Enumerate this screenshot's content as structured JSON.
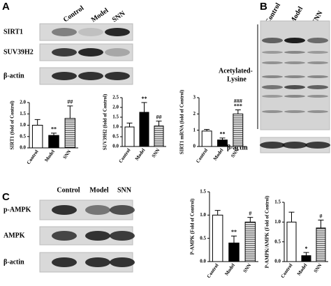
{
  "panels": {
    "a": "A",
    "b": "B",
    "c": "C"
  },
  "blot_a": {
    "lanes": [
      "Control",
      "Model",
      "SNN"
    ],
    "rows": [
      "SIRT1",
      "SUV39H2",
      "β-actin"
    ]
  },
  "blot_b": {
    "lanes": [
      "Control",
      "Model",
      "SNN"
    ],
    "label_lines": [
      "Acetylated-",
      "Lysine"
    ],
    "loading": "β-actin"
  },
  "blot_c": {
    "rows": [
      "p-AMPK",
      "AMPK",
      "β-actin"
    ]
  },
  "chart_data": [
    {
      "type": "bar",
      "ylabel": "SIRT1 (fold of Control)",
      "categories": [
        "Control",
        "Model",
        "SNN"
      ],
      "values": [
        1.0,
        0.55,
        1.3
      ],
      "errors": [
        0.25,
        0.1,
        0.55
      ],
      "annotations": [
        [],
        [
          "**"
        ],
        [
          "##"
        ]
      ],
      "colors": [
        "#ffffff",
        "#000000",
        "#ffffff"
      ],
      "hatch": [
        false,
        false,
        true
      ],
      "ylim": [
        0,
        2
      ],
      "yticks": [
        {
          "value": 0,
          "label": "0.0"
        },
        0.5,
        {
          "value": 1,
          "label": "1.0"
        },
        1.5,
        {
          "value": 2,
          "label": "2.0"
        }
      ]
    },
    {
      "type": "bar",
      "ylabel": "SUV39H2 (fold of Control)",
      "categories": [
        "Control",
        "Model",
        "SNN"
      ],
      "values": [
        1.0,
        1.75,
        1.05
      ],
      "errors": [
        0.2,
        0.5,
        0.25
      ],
      "annotations": [
        [],
        [
          "**"
        ],
        [
          "##"
        ]
      ],
      "colors": [
        "#ffffff",
        "#000000",
        "#ffffff"
      ],
      "hatch": [
        false,
        false,
        true
      ],
      "ylim": [
        0,
        2.5
      ],
      "yticks": [
        {
          "value": 0,
          "label": "0.0"
        },
        0.5,
        {
          "value": 1,
          "label": "1.0"
        },
        1.5,
        {
          "value": 2,
          "label": "2.0"
        },
        2.5
      ]
    },
    {
      "type": "bar",
      "ylabel": "SIRT1 mRNA (fold of Control)",
      "categories": [
        "Control",
        "Model",
        "SNN"
      ],
      "values": [
        0.95,
        0.4,
        2.0
      ],
      "errors": [
        0.1,
        0.12,
        0.25
      ],
      "annotations": [
        [],
        [
          "**"
        ],
        [
          "###",
          "***"
        ]
      ],
      "colors": [
        "#ffffff",
        "#000000",
        "#ffffff"
      ],
      "hatch": [
        false,
        false,
        true
      ],
      "ylim": [
        0,
        3
      ],
      "yticks": [
        0,
        1,
        2,
        3
      ]
    },
    {
      "type": "bar",
      "ylabel": "P-AMPK (Fold of Control)",
      "categories": [
        "Control",
        "Model",
        "SNN"
      ],
      "values": [
        1.0,
        0.4,
        0.85
      ],
      "errors": [
        0.1,
        0.15,
        0.1
      ],
      "annotations": [
        [],
        [
          "**"
        ],
        [
          "#"
        ]
      ],
      "colors": [
        "#ffffff",
        "#000000",
        "#ffffff"
      ],
      "hatch": [
        false,
        false,
        true
      ],
      "ylim": [
        0,
        1.5
      ],
      "yticks": [
        {
          "value": 0,
          "label": "0.0"
        },
        0.5,
        {
          "value": 1,
          "label": "1.0"
        },
        1.5
      ]
    },
    {
      "type": "bar",
      "ylabel": "P-AMPK/AMPK (Fold of Control)",
      "categories": [
        "Control",
        "Model",
        "SNN"
      ],
      "values": [
        1.0,
        0.15,
        0.85
      ],
      "errors": [
        0.25,
        0.08,
        0.2
      ],
      "annotations": [
        [],
        [
          "*"
        ],
        [
          "#"
        ]
      ],
      "colors": [
        "#ffffff",
        "#000000",
        "#ffffff"
      ],
      "hatch": [
        false,
        false,
        true
      ],
      "ylim": [
        0,
        1.5
      ],
      "yticks": [
        {
          "value": 0,
          "label": "0.0"
        },
        0.5,
        {
          "value": 1,
          "label": "1.0"
        },
        1.5
      ]
    }
  ]
}
